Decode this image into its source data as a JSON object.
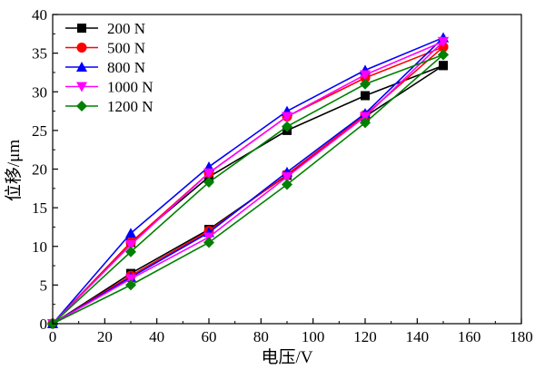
{
  "chart_data": {
    "type": "line",
    "title": "",
    "xlabel": "电压/V",
    "ylabel": "位移/μm",
    "xlim": [
      0,
      180
    ],
    "ylim": [
      0,
      40
    ],
    "x_ticks": [
      0,
      20,
      40,
      60,
      80,
      100,
      120,
      140,
      160,
      180
    ],
    "y_ticks": [
      0,
      5,
      10,
      15,
      20,
      25,
      30,
      35,
      40
    ],
    "x_tick_labels": [
      "0",
      "20",
      "40",
      "60",
      "80",
      "100",
      "120",
      "140",
      "160",
      "180"
    ],
    "y_tick_labels": [
      "0",
      "5",
      "10",
      "15",
      "20",
      "25",
      "30",
      "35",
      "40"
    ],
    "grid": false,
    "legend_position": "top-left",
    "series": [
      {
        "name": "200 N",
        "color": "#000000",
        "marker": "square",
        "ascending": {
          "x": [
            0,
            30,
            60,
            90,
            120,
            150
          ],
          "y": [
            0,
            6.5,
            12.2,
            19.2,
            26.8,
            33.4
          ]
        },
        "descending": {
          "x": [
            150,
            120,
            90,
            60,
            30,
            0
          ],
          "y": [
            33.4,
            29.5,
            25.0,
            19.0,
            10.5,
            0
          ]
        }
      },
      {
        "name": "500 N",
        "color": "#ff0000",
        "marker": "circle",
        "ascending": {
          "x": [
            0,
            30,
            60,
            90,
            120,
            150
          ],
          "y": [
            0,
            6.2,
            12.0,
            19.3,
            27.0,
            35.8
          ]
        },
        "descending": {
          "x": [
            150,
            120,
            90,
            60,
            30,
            0
          ],
          "y": [
            35.8,
            31.8,
            26.8,
            19.5,
            10.5,
            0
          ]
        }
      },
      {
        "name": "800 N",
        "color": "#0000ff",
        "marker": "triangle-up",
        "ascending": {
          "x": [
            0,
            30,
            60,
            90,
            120,
            150
          ],
          "y": [
            0,
            6.0,
            11.8,
            19.6,
            27.2,
            37.0
          ]
        },
        "descending": {
          "x": [
            150,
            120,
            90,
            60,
            30,
            0
          ],
          "y": [
            37.0,
            32.8,
            27.5,
            20.3,
            11.7,
            0
          ]
        }
      },
      {
        "name": "1000 N",
        "color": "#ff00ff",
        "marker": "triangle-down",
        "ascending": {
          "x": [
            0,
            30,
            60,
            90,
            120,
            150
          ],
          "y": [
            0,
            5.8,
            11.2,
            19.0,
            26.8,
            36.5
          ]
        },
        "descending": {
          "x": [
            150,
            120,
            90,
            60,
            30,
            0
          ],
          "y": [
            36.5,
            32.2,
            26.8,
            19.5,
            10.2,
            0
          ]
        }
      },
      {
        "name": "1200 N",
        "color": "#008000",
        "marker": "diamond",
        "ascending": {
          "x": [
            0,
            30,
            60,
            90,
            120,
            150
          ],
          "y": [
            0,
            5.0,
            10.5,
            18.0,
            26.0,
            34.8
          ]
        },
        "descending": {
          "x": [
            150,
            120,
            90,
            60,
            30,
            0
          ],
          "y": [
            34.8,
            31.0,
            25.5,
            18.3,
            9.3,
            0
          ]
        }
      }
    ]
  }
}
